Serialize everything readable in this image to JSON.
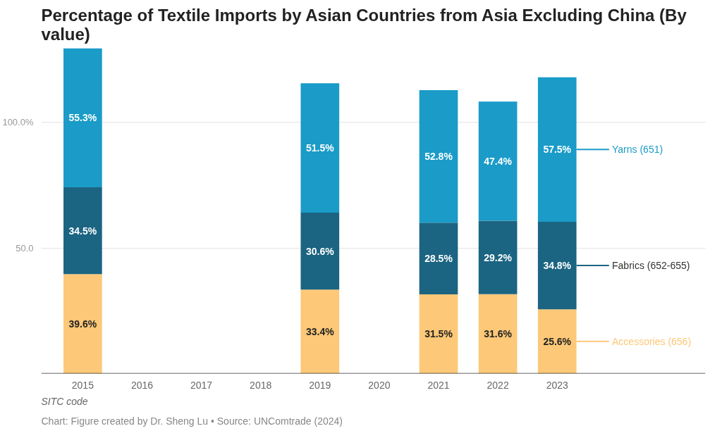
{
  "chart_data": {
    "type": "bar",
    "stacked": true,
    "title": "Percentage of Textile Imports by Asian Countries from Asia Excluding China (By value)",
    "categories": [
      "2015",
      "2016",
      "2017",
      "2018",
      "2019",
      "2020",
      "2021",
      "2022",
      "2023"
    ],
    "series": [
      {
        "name": "Accessories (656)",
        "color": "#fdc877",
        "values": [
          39.6,
          null,
          null,
          null,
          33.4,
          null,
          31.5,
          31.6,
          25.6
        ],
        "value_labels": [
          "39.6%",
          null,
          null,
          null,
          "33.4%",
          null,
          "31.5%",
          "31.6%",
          "25.6%"
        ]
      },
      {
        "name": "Fabrics (652-655)",
        "color": "#1b6482",
        "values": [
          34.5,
          null,
          null,
          null,
          30.6,
          null,
          28.5,
          29.2,
          34.8
        ],
        "value_labels": [
          "34.5%",
          null,
          null,
          null,
          "30.6%",
          null,
          "28.5%",
          "29.2%",
          "34.8%"
        ]
      },
      {
        "name": "Yarns (651)",
        "color": "#1a9bc8",
        "values": [
          55.3,
          null,
          null,
          null,
          51.5,
          null,
          52.8,
          47.4,
          57.5
        ],
        "value_labels": [
          "55.3%",
          null,
          null,
          null,
          "51.5%",
          null,
          "52.8%",
          "47.4%",
          "57.5%"
        ]
      }
    ],
    "ylim": [
      0,
      130
    ],
    "yticks": [
      {
        "value": 50,
        "label": "50.0"
      },
      {
        "value": 100,
        "label": "100.0%"
      }
    ],
    "grid": "y",
    "legend": "right",
    "annotations": [
      "SITC code",
      "Chart: Figure created by Dr. Sheng Lu • Source: UNComtrade (2024)"
    ]
  }
}
